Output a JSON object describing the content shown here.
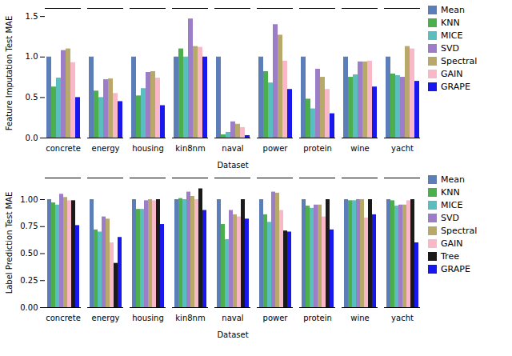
{
  "chart_data": [
    {
      "type": "bar",
      "categories": [
        "concrete",
        "energy",
        "housing",
        "kin8nm",
        "naval",
        "power",
        "protein",
        "wine",
        "yacht"
      ],
      "xlabel": "Dataset",
      "ylabel": "Feature Imputation Test MAE",
      "ylim": [
        0.0,
        1.6
      ],
      "yticks": [
        {
          "value": 0.0,
          "label": "0.0"
        },
        0.5,
        {
          "value": 1.0,
          "label": "1.0"
        },
        1.5
      ],
      "legend": "upper right",
      "series": [
        {
          "name": "Mean",
          "color": "#5B7DB8",
          "values": [
            1.0,
            1.0,
            1.0,
            1.0,
            1.0,
            1.0,
            1.0,
            1.0,
            1.0
          ]
        },
        {
          "name": "KNN",
          "color": "#4CAE4C",
          "values": [
            0.63,
            0.58,
            0.52,
            1.1,
            0.04,
            0.82,
            0.48,
            0.75,
            0.79
          ]
        },
        {
          "name": "MICE",
          "color": "#5BBEBE",
          "values": [
            0.74,
            0.5,
            0.61,
            1.0,
            0.07,
            0.68,
            0.36,
            0.78,
            0.77
          ]
        },
        {
          "name": "SVD",
          "color": "#9B7DC8",
          "values": [
            1.08,
            0.72,
            0.81,
            1.47,
            0.2,
            1.4,
            0.85,
            0.94,
            0.75
          ]
        },
        {
          "name": "Spectral",
          "color": "#B8A86A",
          "values": [
            1.1,
            0.73,
            0.82,
            1.13,
            0.17,
            1.27,
            0.75,
            0.94,
            1.13
          ]
        },
        {
          "name": "GAIN",
          "color": "#F9B8C8",
          "values": [
            0.93,
            0.55,
            0.74,
            1.12,
            0.13,
            0.95,
            0.6,
            0.95,
            1.1
          ]
        },
        {
          "name": "GRAPE",
          "color": "#1818EE",
          "values": [
            0.5,
            0.45,
            0.4,
            1.0,
            0.03,
            0.6,
            0.3,
            0.63,
            0.7
          ]
        }
      ]
    },
    {
      "type": "bar",
      "categories": [
        "concrete",
        "energy",
        "housing",
        "kin8nm",
        "naval",
        "power",
        "protein",
        "wine",
        "yacht"
      ],
      "xlabel": "Dataset",
      "ylabel": "Label Prediction Test MAE",
      "ylim": [
        0.0,
        1.2
      ],
      "yticks": [
        {
          "value": 0.0,
          "label": "0.00"
        },
        0.25,
        {
          "value": 0.5,
          "label": "0.50"
        },
        0.75,
        {
          "value": 1.0,
          "label": "1.00"
        }
      ],
      "legend": "upper right",
      "series": [
        {
          "name": "Mean",
          "color": "#5B7DB8",
          "values": [
            1.0,
            1.0,
            1.0,
            1.0,
            1.0,
            1.0,
            1.0,
            1.0,
            1.0
          ]
        },
        {
          "name": "KNN",
          "color": "#4CAE4C",
          "values": [
            0.97,
            0.72,
            0.91,
            1.01,
            0.77,
            0.86,
            0.94,
            0.99,
            0.99
          ]
        },
        {
          "name": "MICE",
          "color": "#5BBEBE",
          "values": [
            0.95,
            0.7,
            0.91,
            1.0,
            0.63,
            0.79,
            0.92,
            0.99,
            0.94
          ]
        },
        {
          "name": "SVD",
          "color": "#9B7DC8",
          "values": [
            1.05,
            0.84,
            0.99,
            1.07,
            0.9,
            1.07,
            0.95,
            1.0,
            0.95
          ]
        },
        {
          "name": "Spectral",
          "color": "#B8A86A",
          "values": [
            1.02,
            0.82,
            1.0,
            1.03,
            0.86,
            1.06,
            0.95,
            1.0,
            0.95
          ]
        },
        {
          "name": "GAIN",
          "color": "#F9B8C8",
          "values": [
            0.99,
            0.6,
            0.99,
            1.0,
            0.84,
            0.9,
            0.84,
            0.83,
            0.99
          ]
        },
        {
          "name": "Tree",
          "color": "#1A1A1A",
          "values": [
            0.99,
            0.41,
            1.0,
            1.1,
            1.0,
            0.71,
            1.0,
            1.0,
            1.0
          ]
        },
        {
          "name": "GRAPE",
          "color": "#1818EE",
          "values": [
            0.76,
            0.65,
            0.77,
            0.9,
            0.82,
            0.7,
            0.72,
            0.86,
            0.6
          ]
        }
      ]
    }
  ]
}
